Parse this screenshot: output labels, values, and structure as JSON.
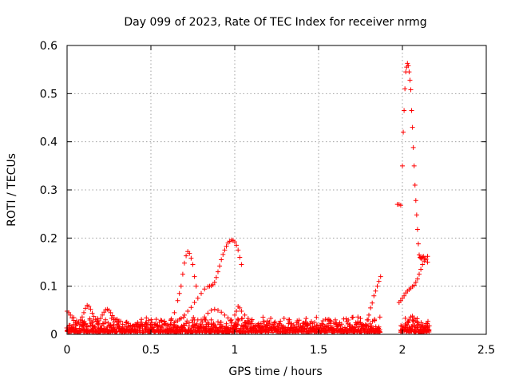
{
  "chart_data": {
    "type": "scatter",
    "title": "Day 099 of 2023, Rate Of TEC Index for receiver nrmg",
    "xlabel": "GPS time / hours",
    "ylabel": "ROTI / TECUs",
    "xlim": [
      0,
      2.5
    ],
    "ylim": [
      0,
      0.6
    ],
    "xticks": [
      "0",
      "0.5",
      "1",
      "1.5",
      "2",
      "2.5"
    ],
    "yticks": [
      "0",
      "0.1",
      "0.2",
      "0.3",
      "0.4",
      "0.5",
      "0.6"
    ],
    "grid": true,
    "marker": "+",
    "color": "#ff0000",
    "series": [
      {
        "x": [
          0.0,
          0.01,
          0.02,
          0.03,
          0.04,
          0.05,
          0.06,
          0.07,
          0.08,
          0.09,
          0.1,
          0.11,
          0.12,
          0.13,
          0.14,
          0.15,
          0.16,
          0.17,
          0.18,
          0.19,
          0.2,
          0.21,
          0.22,
          0.23,
          0.24,
          0.25,
          0.26,
          0.27,
          0.28,
          0.29,
          0.3
        ],
        "y": [
          0.048,
          0.045,
          0.04,
          0.034,
          0.029,
          0.024,
          0.022,
          0.025,
          0.03,
          0.036,
          0.045,
          0.054,
          0.06,
          0.058,
          0.052,
          0.044,
          0.037,
          0.031,
          0.027,
          0.028,
          0.033,
          0.04,
          0.046,
          0.051,
          0.052,
          0.05,
          0.045,
          0.039,
          0.034,
          0.03,
          0.027
        ]
      },
      {
        "x": [
          0.6,
          0.62,
          0.64,
          0.66,
          0.67,
          0.68,
          0.69,
          0.7,
          0.71,
          0.72,
          0.73,
          0.74,
          0.75,
          0.76,
          0.77
        ],
        "y": [
          0.02,
          0.03,
          0.045,
          0.07,
          0.085,
          0.1,
          0.125,
          0.148,
          0.163,
          0.172,
          0.168,
          0.158,
          0.145,
          0.12,
          0.1
        ]
      },
      {
        "x": [
          0.62,
          0.64,
          0.66,
          0.68,
          0.7,
          0.72,
          0.74,
          0.76,
          0.78,
          0.8,
          0.82,
          0.84,
          0.85,
          0.86,
          0.87,
          0.88,
          0.89,
          0.9,
          0.91,
          0.92,
          0.93,
          0.94,
          0.95,
          0.96,
          0.97,
          0.98,
          0.99,
          1.0,
          1.01,
          1.02,
          1.03,
          1.04
        ],
        "y": [
          0.02,
          0.024,
          0.028,
          0.033,
          0.04,
          0.048,
          0.056,
          0.066,
          0.075,
          0.085,
          0.094,
          0.099,
          0.1,
          0.101,
          0.103,
          0.108,
          0.118,
          0.13,
          0.142,
          0.155,
          0.166,
          0.175,
          0.183,
          0.19,
          0.193,
          0.196,
          0.195,
          0.192,
          0.185,
          0.175,
          0.16,
          0.145
        ]
      },
      {
        "x": [
          0.8,
          0.82,
          0.84,
          0.86,
          0.88,
          0.9,
          0.92,
          0.94,
          0.96,
          0.98,
          1.0,
          1.01,
          1.02,
          1.03,
          1.04,
          1.06,
          1.08,
          1.1
        ],
        "y": [
          0.03,
          0.036,
          0.044,
          0.05,
          0.052,
          0.05,
          0.046,
          0.04,
          0.034,
          0.03,
          0.04,
          0.048,
          0.058,
          0.055,
          0.048,
          0.04,
          0.033,
          0.028
        ]
      },
      {
        "x": [
          0.65,
          0.7,
          0.75,
          0.78,
          0.82,
          0.86,
          0.9,
          0.95,
          1.0,
          1.05,
          1.1
        ],
        "y": [
          0.012,
          0.018,
          0.025,
          0.03,
          0.032,
          0.03,
          0.026,
          0.022,
          0.019,
          0.017,
          0.015
        ]
      },
      {
        "x": [
          1.6,
          1.65,
          1.7,
          1.75,
          1.79,
          1.8,
          1.81,
          1.82,
          1.83,
          1.84,
          1.85,
          1.86,
          1.87
        ],
        "y": [
          0.03,
          0.032,
          0.035,
          0.033,
          0.03,
          0.04,
          0.055,
          0.065,
          0.08,
          0.09,
          0.1,
          0.11,
          0.12
        ]
      },
      {
        "x": [
          1.97,
          1.98,
          1.99,
          2.0,
          2.005,
          2.01,
          2.015,
          2.02,
          2.025,
          2.03,
          2.035,
          2.04,
          2.045,
          2.05,
          2.055,
          2.06,
          2.065,
          2.07,
          2.075,
          2.08,
          2.085,
          2.09,
          2.095,
          2.1,
          2.105,
          2.11,
          2.115,
          2.12,
          2.125,
          2.13,
          2.14,
          2.15
        ],
        "y": [
          0.27,
          0.27,
          0.268,
          0.35,
          0.42,
          0.465,
          0.51,
          0.545,
          0.555,
          0.563,
          0.558,
          0.545,
          0.528,
          0.508,
          0.465,
          0.43,
          0.388,
          0.35,
          0.31,
          0.278,
          0.248,
          0.218,
          0.188,
          0.165,
          0.16,
          0.158,
          0.158,
          0.16,
          0.162,
          0.158,
          0.155,
          0.15
        ]
      },
      {
        "x": [
          1.98,
          1.99,
          2.0,
          2.01,
          2.02,
          2.03,
          2.04,
          2.05,
          2.06,
          2.07,
          2.08,
          2.09,
          2.1,
          2.11,
          2.12,
          2.13,
          2.14,
          2.15
        ],
        "y": [
          0.066,
          0.07,
          0.075,
          0.08,
          0.086,
          0.09,
          0.093,
          0.096,
          0.099,
          0.102,
          0.108,
          0.115,
          0.125,
          0.135,
          0.145,
          0.152,
          0.158,
          0.162
        ]
      },
      {
        "x": [
          2.0,
          2.01,
          2.02,
          2.03,
          2.04,
          2.05,
          2.06,
          2.07,
          2.08,
          2.09,
          2.1,
          2.11,
          2.12,
          2.13,
          2.14,
          2.15
        ],
        "y": [
          0.01,
          0.014,
          0.018,
          0.024,
          0.03,
          0.036,
          0.038,
          0.034,
          0.028,
          0.024,
          0.02,
          0.018,
          0.016,
          0.014,
          0.012,
          0.01
        ]
      }
    ]
  }
}
